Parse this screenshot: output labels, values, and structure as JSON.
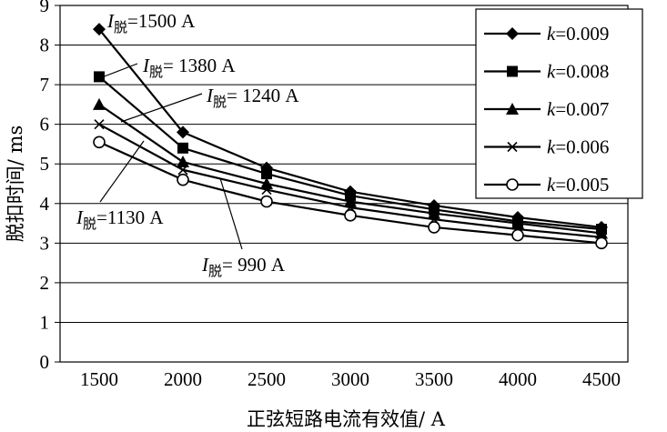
{
  "chart_data": {
    "type": "line",
    "xlabel": "正弦短路电流有效值/ A",
    "ylabel": "脱扣时间/ ms",
    "categories": [
      "1500",
      "2000",
      "2500",
      "3000",
      "3500",
      "4000",
      "4500"
    ],
    "ylim": [
      0,
      9
    ],
    "yticks": [
      "0",
      "1",
      "2",
      "3",
      "4",
      "5",
      "6",
      "7",
      "8",
      "9"
    ],
    "grid": "horizontal",
    "legend_position": "top-right",
    "series": [
      {
        "name": "k=0.009",
        "k_symbol": "k",
        "k_value": "=0.009",
        "marker": "diamond",
        "values": [
          8.4,
          5.8,
          4.9,
          4.3,
          3.95,
          3.65,
          3.4
        ]
      },
      {
        "name": "k=0.008",
        "k_symbol": "k",
        "k_value": "=0.008",
        "marker": "square",
        "values": [
          7.2,
          5.4,
          4.75,
          4.2,
          3.85,
          3.55,
          3.35
        ]
      },
      {
        "name": "k=0.007",
        "k_symbol": "k",
        "k_value": "=0.007",
        "marker": "triangle",
        "values": [
          6.5,
          5.05,
          4.5,
          4.05,
          3.75,
          3.5,
          3.25
        ]
      },
      {
        "name": "k=0.006",
        "k_symbol": "k",
        "k_value": "=0.006",
        "marker": "x",
        "values": [
          6.0,
          4.85,
          4.35,
          3.9,
          3.6,
          3.35,
          3.15
        ]
      },
      {
        "name": "k=0.005",
        "k_symbol": "k",
        "k_value": "=0.005",
        "marker": "circle",
        "values": [
          5.55,
          4.6,
          4.05,
          3.7,
          3.4,
          3.2,
          3.0
        ]
      }
    ],
    "annotations": [
      {
        "symbol": "I",
        "sub": "脱",
        "value": "=1500 A"
      },
      {
        "symbol": "I",
        "sub": "脱",
        "value": "= 1380 A"
      },
      {
        "symbol": "I",
        "sub": "脱",
        "value": "= 1240 A"
      },
      {
        "symbol": "I",
        "sub": "脱",
        "value": "=1130 A"
      },
      {
        "symbol": "I",
        "sub": "脱",
        "value": "= 990 A"
      }
    ]
  }
}
